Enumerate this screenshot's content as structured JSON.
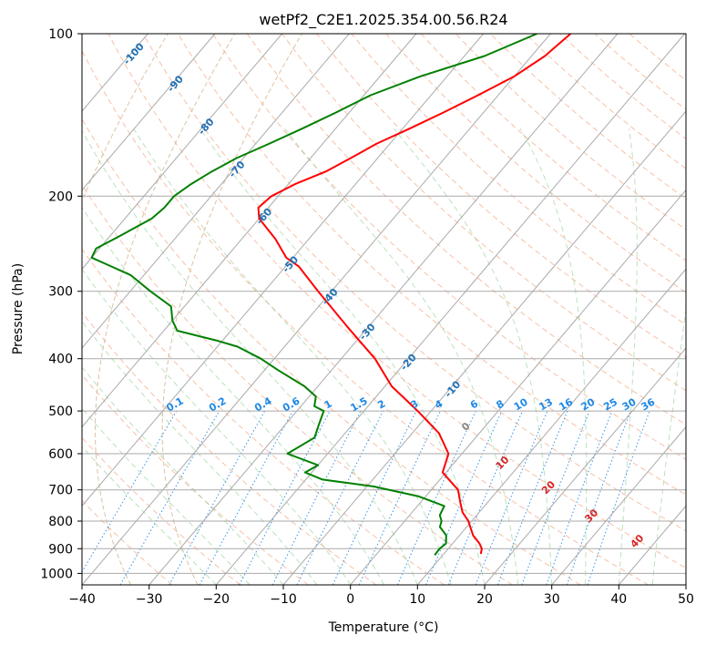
{
  "chart_data": {
    "type": "line",
    "title": "wetPf2_C2E1.2025.354.00.56.R24",
    "xlabel": "Temperature (°C)",
    "ylabel": "Pressure (hPa)",
    "xlim": [
      -40,
      50
    ],
    "ylim": [
      1050,
      100
    ],
    "y_scale": "log",
    "x_ticks": [
      "−40",
      "−30",
      "−20",
      "−10",
      "0",
      "10",
      "20",
      "30",
      "40",
      "50"
    ],
    "y_ticks": [
      "100",
      "200",
      "300",
      "400",
      "500",
      "600",
      "700",
      "800",
      "900",
      "1000"
    ],
    "series": [
      {
        "color": "#ff0000",
        "points": [
          [
            100,
            -37
          ],
          [
            110,
            -38
          ],
          [
            120,
            -40
          ],
          [
            130,
            -43
          ],
          [
            140,
            -46
          ],
          [
            150,
            -49
          ],
          [
            160,
            -52
          ],
          [
            170,
            -54
          ],
          [
            180,
            -56
          ],
          [
            190,
            -59
          ],
          [
            200,
            -61
          ],
          [
            210,
            -61.5
          ],
          [
            220,
            -60
          ],
          [
            240,
            -55
          ],
          [
            260,
            -51
          ],
          [
            270,
            -48
          ],
          [
            300,
            -42
          ],
          [
            350,
            -33
          ],
          [
            400,
            -25
          ],
          [
            450,
            -19
          ],
          [
            500,
            -12
          ],
          [
            550,
            -6
          ],
          [
            600,
            -2
          ],
          [
            650,
            -0.5
          ],
          [
            700,
            4
          ],
          [
            740,
            6
          ],
          [
            770,
            7.5
          ],
          [
            800,
            9.5
          ],
          [
            850,
            12
          ],
          [
            880,
            14
          ],
          [
            900,
            15
          ],
          [
            920,
            15.5
          ]
        ]
      },
      {
        "color": "#008000",
        "points": [
          [
            100,
            -42
          ],
          [
            110,
            -47
          ],
          [
            120,
            -54
          ],
          [
            130,
            -59
          ],
          [
            140,
            -62
          ],
          [
            150,
            -65
          ],
          [
            160,
            -68
          ],
          [
            170,
            -71
          ],
          [
            180,
            -73
          ],
          [
            190,
            -74.5
          ],
          [
            200,
            -75.5
          ],
          [
            210,
            -75.5
          ],
          [
            220,
            -76
          ],
          [
            240,
            -79
          ],
          [
            250,
            -80.5
          ],
          [
            260,
            -80
          ],
          [
            280,
            -72
          ],
          [
            300,
            -67
          ],
          [
            320,
            -62
          ],
          [
            340,
            -60
          ],
          [
            355,
            -58
          ],
          [
            370,
            -51
          ],
          [
            380,
            -47
          ],
          [
            400,
            -42
          ],
          [
            420,
            -38
          ],
          [
            450,
            -32
          ],
          [
            470,
            -29
          ],
          [
            490,
            -28
          ],
          [
            500,
            -26
          ],
          [
            530,
            -25
          ],
          [
            560,
            -24
          ],
          [
            600,
            -26
          ],
          [
            630,
            -20
          ],
          [
            650,
            -21
          ],
          [
            670,
            -17.5
          ],
          [
            690,
            -9
          ],
          [
            720,
            -1
          ],
          [
            750,
            4
          ],
          [
            780,
            4.5
          ],
          [
            800,
            5.5
          ],
          [
            820,
            6
          ],
          [
            850,
            8
          ],
          [
            880,
            9
          ],
          [
            900,
            8.7
          ],
          [
            925,
            8.8
          ]
        ]
      }
    ],
    "dry_adiabats_labels": [
      "-100",
      "-90",
      "-80",
      "-70",
      "-60",
      "-50",
      "-40",
      "-30",
      "-20",
      "-10"
    ],
    "mixing_ratio_labels": [
      "0.1",
      "0.2",
      "0.4",
      "0.6",
      "1",
      "1.5",
      "2",
      "3",
      "4",
      "6",
      "8",
      "10",
      "13",
      "16",
      "20",
      "25",
      "30",
      "36"
    ],
    "moist_adiabat_labels": [
      "0",
      "10",
      "20",
      "30",
      "40"
    ],
    "grid": true
  }
}
